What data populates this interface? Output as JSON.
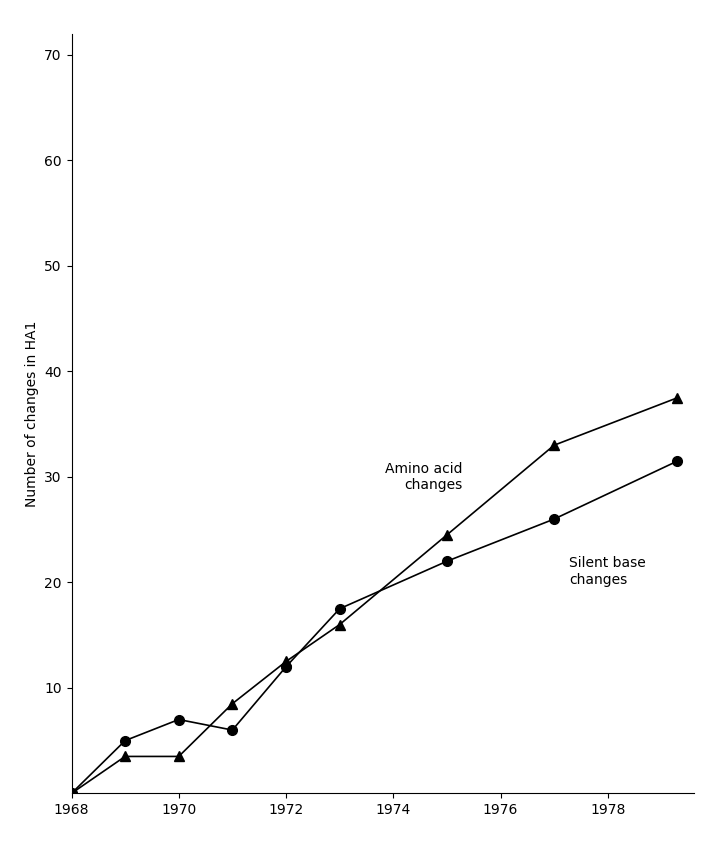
{
  "chart_data": {
    "type": "line",
    "y_label": "Number of changes in HA1",
    "xlim": [
      1968,
      1979.6
    ],
    "xticks": [
      1968,
      1970,
      1972,
      1974,
      1976,
      1978
    ],
    "ylim": [
      0,
      72
    ],
    "yticks": [
      10,
      20,
      30,
      40,
      50,
      60,
      70
    ],
    "tick_labels": true,
    "series": [
      {
        "name": "Amino acid\nchanges",
        "color": "#000000",
        "marker": "triangle",
        "line_style": "solid",
        "x": [
          1968,
          1969,
          1970,
          1971,
          1972,
          1973,
          1975,
          1977,
          1979.3
        ],
        "values": [
          0,
          3.5,
          3.5,
          8.5,
          12.5,
          16,
          24.5,
          33,
          37.5
        ]
      },
      {
        "name": "Silent base\nchanges",
        "color": "#000000",
        "marker": "circle",
        "line_style": "solid",
        "x": [
          1968,
          1969,
          1970,
          1971,
          1972,
          1973,
          1975,
          1977,
          1979.3
        ],
        "values": [
          0,
          5,
          7,
          6,
          12,
          17.5,
          22,
          26,
          31.5
        ]
      }
    ]
  }
}
